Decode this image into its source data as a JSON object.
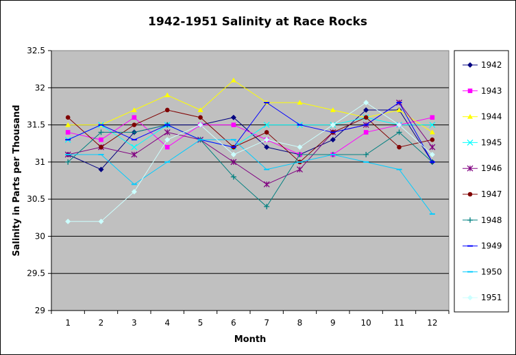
{
  "chart_data": {
    "type": "line",
    "title": "1942-1951 Salinity at Race Rocks",
    "xlabel": "Month",
    "ylabel": "Salinity in Parts per Thousand",
    "x": [
      1,
      2,
      3,
      4,
      5,
      6,
      7,
      8,
      9,
      10,
      11,
      12
    ],
    "x_tick_labels": [
      "1",
      "2",
      "3",
      "4",
      "5",
      "6",
      "7",
      "8",
      "9",
      "10",
      "11",
      "12"
    ],
    "ylim": [
      29,
      32.5
    ],
    "y_ticks": [
      29,
      29.5,
      30,
      30.5,
      31,
      31.5,
      32,
      32.5
    ],
    "y_tick_labels": [
      "29",
      "29.5",
      "30",
      "30.5",
      "31",
      "31.5",
      "32",
      "32.5"
    ],
    "grid": "horizontal",
    "legend_position": "right",
    "plot_background": "#c0c0c0",
    "series": [
      {
        "name": "1942",
        "color": "#000080",
        "marker": "diamond",
        "values": [
          31.1,
          30.9,
          31.4,
          31.5,
          31.5,
          31.6,
          31.2,
          31.1,
          31.3,
          31.7,
          31.7,
          31.0
        ]
      },
      {
        "name": "1943",
        "color": "#ff00ff",
        "marker": "square",
        "values": [
          31.4,
          31.3,
          31.6,
          31.2,
          31.5,
          31.5,
          31.3,
          31.1,
          31.1,
          31.4,
          31.5,
          31.6
        ]
      },
      {
        "name": "1944",
        "color": "#ffff00",
        "marker": "triangle",
        "values": [
          31.5,
          31.5,
          31.7,
          31.9,
          31.7,
          32.1,
          31.8,
          31.8,
          31.7,
          31.6,
          31.7,
          31.4
        ]
      },
      {
        "name": "1945",
        "color": "#00ffff",
        "marker": "x",
        "values": [
          31.3,
          31.5,
          31.2,
          31.5,
          31.3,
          31.2,
          31.5,
          31.5,
          31.5,
          31.6,
          31.5,
          31.5
        ]
      },
      {
        "name": "1946",
        "color": "#800080",
        "marker": "star",
        "values": [
          31.1,
          31.2,
          31.1,
          31.4,
          31.3,
          31.0,
          30.7,
          30.9,
          31.4,
          31.5,
          31.8,
          31.2
        ]
      },
      {
        "name": "1947",
        "color": "#800000",
        "marker": "circle",
        "values": [
          31.6,
          31.2,
          31.5,
          31.7,
          31.6,
          31.2,
          31.4,
          31.0,
          31.4,
          31.6,
          31.2,
          31.3
        ]
      },
      {
        "name": "1948",
        "color": "#008080",
        "marker": "plus",
        "values": [
          31.0,
          31.4,
          31.4,
          31.5,
          31.3,
          30.8,
          30.4,
          31.1,
          31.1,
          31.1,
          31.4,
          31.0
        ]
      },
      {
        "name": "1949",
        "color": "#0000ff",
        "marker": "dash",
        "values": [
          31.3,
          31.5,
          31.3,
          31.5,
          31.3,
          31.2,
          31.8,
          31.5,
          31.4,
          31.5,
          31.8,
          31.0
        ]
      },
      {
        "name": "1950",
        "color": "#00ccff",
        "marker": "dash",
        "values": [
          31.1,
          31.1,
          30.7,
          31.0,
          31.3,
          31.3,
          30.9,
          31.0,
          31.1,
          31.0,
          30.9,
          30.3
        ]
      },
      {
        "name": "1951",
        "color": "#ccffff",
        "marker": "diamond",
        "values": [
          30.2,
          30.2,
          30.6,
          31.3,
          31.5,
          31.1,
          31.3,
          31.2,
          31.5,
          31.8,
          31.5,
          31.1
        ]
      }
    ]
  }
}
